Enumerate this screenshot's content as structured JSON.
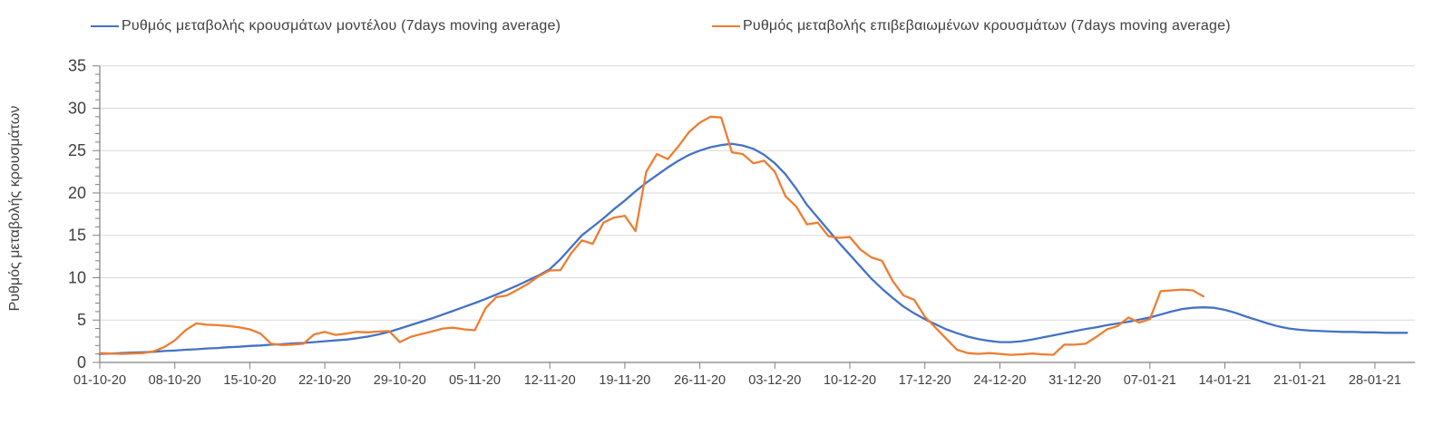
{
  "page": {
    "background": "#FFFFFF"
  },
  "chart_data": {
    "type": "line",
    "title": "",
    "xlabel": "",
    "ylabel": "Ρυθμός μεταβολής κρουσμάτων",
    "ylim": [
      0,
      35
    ],
    "y_ticks": [
      0,
      5,
      10,
      15,
      20,
      25,
      30,
      35
    ],
    "y_minor_tick_step": 1,
    "grid": "horizontal-major",
    "legend_position": "top",
    "axis_color": "#808080",
    "grid_color": "#D9D9D9",
    "label_color": "#404040",
    "x_start_date": "01-10-20",
    "x_tick_interval_days": 7,
    "x_tick_labels": [
      "01-10-20",
      "08-10-20",
      "15-10-20",
      "22-10-20",
      "29-10-20",
      "05-11-20",
      "12-11-20",
      "19-11-20",
      "26-11-20",
      "03-12-20",
      "10-12-20",
      "17-12-20",
      "24-12-20",
      "31-12-20",
      "07-01-21",
      "14-01-21",
      "21-01-21",
      "28-01-21"
    ],
    "series": [
      {
        "name": "Ρυθμός μεταβολής κρουσμάτων μοντέλου (7days moving average)",
        "color": "#4472C4",
        "start_day": 0,
        "step_days": 1,
        "values": [
          1.0,
          1.05,
          1.1,
          1.15,
          1.2,
          1.25,
          1.35,
          1.4,
          1.5,
          1.55,
          1.65,
          1.7,
          1.8,
          1.85,
          1.95,
          2.0,
          2.1,
          2.15,
          2.25,
          2.3,
          2.4,
          2.5,
          2.6,
          2.7,
          2.85,
          3.05,
          3.3,
          3.6,
          4.0,
          4.4,
          4.8,
          5.2,
          5.65,
          6.1,
          6.55,
          7.0,
          7.5,
          8.0,
          8.55,
          9.1,
          9.7,
          10.3,
          11.0,
          12.2,
          13.6,
          15.0,
          16.0,
          17.0,
          18.1,
          19.1,
          20.2,
          21.2,
          22.1,
          23.0,
          23.8,
          24.5,
          25.0,
          25.4,
          25.65,
          25.8,
          25.6,
          25.2,
          24.5,
          23.5,
          22.2,
          20.5,
          18.6,
          17.1,
          15.6,
          14.1,
          12.7,
          11.3,
          9.9,
          8.7,
          7.6,
          6.6,
          5.8,
          5.1,
          4.5,
          3.9,
          3.45,
          3.05,
          2.75,
          2.55,
          2.4,
          2.4,
          2.5,
          2.7,
          2.95,
          3.2,
          3.45,
          3.7,
          3.95,
          4.15,
          4.4,
          4.6,
          4.8,
          5.05,
          5.3,
          5.65,
          6.0,
          6.3,
          6.45,
          6.5,
          6.45,
          6.2,
          5.85,
          5.4,
          5.0,
          4.6,
          4.25,
          4.0,
          3.85,
          3.75,
          3.7,
          3.65,
          3.6,
          3.6,
          3.55,
          3.55,
          3.5,
          3.5,
          3.5
        ]
      },
      {
        "name": "Ρυθμός μεταβολής επιβεβαιωμένων κρουσμάτων (7days moving average)",
        "color": "#ED7D31",
        "start_day": 0,
        "step_days": 1,
        "values": [
          1.1,
          1.05,
          1.0,
          1.05,
          1.1,
          1.3,
          1.8,
          2.6,
          3.8,
          4.6,
          4.45,
          4.4,
          4.3,
          4.15,
          3.9,
          3.4,
          2.2,
          2.05,
          2.1,
          2.2,
          3.3,
          3.6,
          3.25,
          3.4,
          3.6,
          3.55,
          3.65,
          3.7,
          2.4,
          3.0,
          3.35,
          3.65,
          4.0,
          4.1,
          3.9,
          3.8,
          6.4,
          7.7,
          7.9,
          8.6,
          9.3,
          10.2,
          10.85,
          10.9,
          12.9,
          14.4,
          14.0,
          16.5,
          17.1,
          17.3,
          15.5,
          22.5,
          24.6,
          24.0,
          25.5,
          27.2,
          28.3,
          29.0,
          28.9,
          24.8,
          24.6,
          23.5,
          23.8,
          22.5,
          19.6,
          18.4,
          16.3,
          16.5,
          14.9,
          14.7,
          14.8,
          13.3,
          12.4,
          12.0,
          9.6,
          7.9,
          7.4,
          5.4,
          4.1,
          2.8,
          1.5,
          1.1,
          1.0,
          1.1,
          1.0,
          0.9,
          0.95,
          1.05,
          0.95,
          0.9,
          2.1,
          2.1,
          2.2,
          3.0,
          3.9,
          4.3,
          5.3,
          4.7,
          5.1,
          8.4,
          8.5,
          8.6,
          8.5,
          7.8
        ]
      }
    ]
  }
}
